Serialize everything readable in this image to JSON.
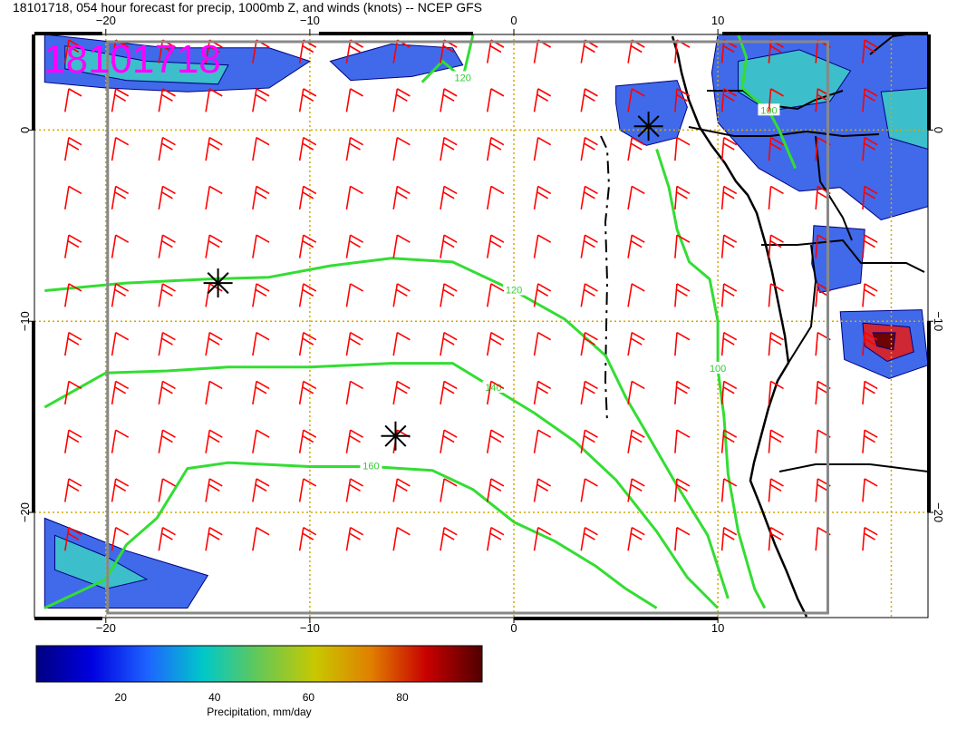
{
  "title": "18101718, 054 hour forecast for precip, 1000mb Z, and winds (knots) -- NCEP GFS",
  "date_label": "18101718",
  "map": {
    "lon_range": [
      -23.5,
      20.3
    ],
    "lat_range": [
      -25.5,
      5
    ],
    "lon_ticks": [
      {
        "value": -20,
        "label": "−20"
      },
      {
        "value": -10,
        "label": "−10"
      },
      {
        "value": 0,
        "label": "0"
      },
      {
        "value": 10,
        "label": "10"
      }
    ],
    "lat_ticks": [
      {
        "value": 0,
        "label": "0"
      },
      {
        "value": -10,
        "label": "−10"
      },
      {
        "value": -20,
        "label": "−20"
      }
    ],
    "gridlines": "dotted gold",
    "height_contours": [
      {
        "value": 120,
        "label": "120",
        "points": [
          [
            -23,
            -8.4
          ],
          [
            -19,
            -8
          ],
          [
            -15,
            -7.8
          ],
          [
            -12,
            -7.7
          ],
          [
            -9,
            -7.1
          ],
          [
            -6,
            -6.7
          ],
          [
            -3,
            -6.9
          ],
          [
            0,
            -8.4
          ],
          [
            2.5,
            -9.9
          ],
          [
            4.5,
            -11.8
          ],
          [
            5.5,
            -14
          ],
          [
            6.7,
            -16.2
          ],
          [
            8,
            -18.6
          ],
          [
            9.5,
            -21.2
          ],
          [
            10.5,
            -24.5
          ]
        ]
      },
      {
        "value": 140,
        "label": "140",
        "points": [
          [
            -23,
            -14.5
          ],
          [
            -20,
            -12.7
          ],
          [
            -17,
            -12.6
          ],
          [
            -14,
            -12.4
          ],
          [
            -10,
            -12.4
          ],
          [
            -6,
            -12.2
          ],
          [
            -3,
            -12.2
          ],
          [
            -1,
            -13.5
          ],
          [
            1,
            -14.8
          ],
          [
            3,
            -16.3
          ],
          [
            5,
            -18.3
          ],
          [
            7,
            -21
          ],
          [
            8.5,
            -23.4
          ],
          [
            10,
            -25
          ]
        ]
      },
      {
        "value": 160,
        "label": "160",
        "points": [
          [
            -23,
            -25
          ],
          [
            -22,
            -24.5
          ],
          [
            -20,
            -23.5
          ],
          [
            -19,
            -21.7
          ],
          [
            -17.5,
            -20.3
          ],
          [
            -16,
            -17.7
          ],
          [
            -14,
            -17.4
          ],
          [
            -10,
            -17.6
          ],
          [
            -7,
            -17.6
          ],
          [
            -4,
            -17.8
          ],
          [
            -2,
            -18.8
          ],
          [
            0,
            -20.5
          ],
          [
            2,
            -21.5
          ],
          [
            4,
            -22.8
          ],
          [
            5.5,
            -24
          ],
          [
            7,
            -25
          ]
        ]
      },
      {
        "value": 100,
        "label": "100",
        "points": [
          [
            7,
            -1
          ],
          [
            7.6,
            -3
          ],
          [
            8,
            -5.2
          ],
          [
            8.6,
            -6.9
          ],
          [
            9.6,
            -7.8
          ],
          [
            10,
            -10
          ],
          [
            10,
            -12.5
          ],
          [
            10.3,
            -15
          ],
          [
            10.5,
            -18
          ],
          [
            11,
            -21
          ],
          [
            11.8,
            -24
          ],
          [
            12.3,
            -25
          ]
        ]
      },
      {
        "value": 120,
        "label": "120",
        "points": [
          [
            -4.5,
            2.5
          ],
          [
            -3.5,
            3.6
          ],
          [
            -2.5,
            2.7
          ],
          [
            -2,
            5
          ]
        ]
      },
      {
        "value": 100,
        "label": "100",
        "points": [
          [
            11,
            5
          ],
          [
            11.4,
            3.8
          ],
          [
            11.2,
            2.2
          ],
          [
            12.5,
            1
          ],
          [
            13,
            0
          ],
          [
            13.8,
            -2
          ]
        ]
      }
    ],
    "precip_blobs": [
      {
        "level": "low",
        "points": [
          [
            -23,
            5
          ],
          [
            -17,
            4.3
          ],
          [
            -12,
            4.3
          ],
          [
            -10,
            3.6
          ],
          [
            -12,
            2.2
          ],
          [
            -16,
            2
          ],
          [
            -20,
            2.2
          ],
          [
            -23,
            2.5
          ]
        ]
      },
      {
        "level": "mid",
        "points": [
          [
            -22,
            4.4
          ],
          [
            -18,
            3.6
          ],
          [
            -14,
            3.4
          ],
          [
            -14.5,
            2.4
          ],
          [
            -19,
            2.6
          ],
          [
            -22,
            3.2
          ]
        ]
      },
      {
        "level": "low",
        "points": [
          [
            -9,
            3.6
          ],
          [
            -6,
            4.5
          ],
          [
            -3,
            4.3
          ],
          [
            -2.5,
            3.4
          ],
          [
            -5,
            2.8
          ],
          [
            -8,
            2.6
          ]
        ]
      },
      {
        "level": "low",
        "points": [
          [
            5,
            2.3
          ],
          [
            8,
            2.6
          ],
          [
            8.5,
            1.2
          ],
          [
            8,
            -0.4
          ],
          [
            6.5,
            -0.8
          ],
          [
            5.2,
            0
          ],
          [
            5,
            1.4
          ]
        ]
      },
      {
        "level": "low",
        "points": [
          [
            10,
            5
          ],
          [
            20.3,
            5
          ],
          [
            20.3,
            -4
          ],
          [
            18,
            -4.7
          ],
          [
            16,
            -3
          ],
          [
            14,
            -3.2
          ],
          [
            12,
            -2
          ],
          [
            10,
            0.4
          ],
          [
            9.7,
            3
          ]
        ]
      },
      {
        "level": "mid",
        "points": [
          [
            11,
            3.6
          ],
          [
            14,
            4.2
          ],
          [
            16.5,
            3.1
          ],
          [
            15.5,
            1.5
          ],
          [
            12.5,
            1
          ],
          [
            11,
            2
          ]
        ]
      },
      {
        "level": "mid",
        "points": [
          [
            18,
            2
          ],
          [
            20.3,
            2.2
          ],
          [
            20.3,
            -1
          ],
          [
            18.4,
            -0.4
          ]
        ]
      },
      {
        "level": "low",
        "points": [
          [
            14.7,
            -5
          ],
          [
            17.2,
            -5.2
          ],
          [
            17,
            -8
          ],
          [
            15,
            -8.5
          ],
          [
            14.6,
            -7
          ]
        ]
      },
      {
        "level": "low",
        "points": [
          [
            16,
            -9.5
          ],
          [
            20,
            -9.4
          ],
          [
            20.3,
            -12.3
          ],
          [
            18.4,
            -13
          ],
          [
            16.2,
            -12
          ]
        ]
      },
      {
        "level": "high",
        "points": [
          [
            17.1,
            -10.1
          ],
          [
            19.4,
            -10.3
          ],
          [
            19.6,
            -11.6
          ],
          [
            18.3,
            -12.1
          ],
          [
            17.2,
            -11.3
          ]
        ]
      },
      {
        "level": "peak",
        "points": [
          [
            17.6,
            -10.6
          ],
          [
            18.7,
            -10.6
          ],
          [
            18.6,
            -11.5
          ],
          [
            17.8,
            -11.3
          ]
        ]
      },
      {
        "level": "low",
        "points": [
          [
            -23,
            -20.3
          ],
          [
            -19,
            -22
          ],
          [
            -15,
            -23.3
          ],
          [
            -16,
            -25
          ],
          [
            -23,
            -25
          ]
        ]
      },
      {
        "level": "mid",
        "points": [
          [
            -22.5,
            -21.2
          ],
          [
            -20,
            -22.3
          ],
          [
            -18,
            -23.5
          ],
          [
            -20,
            -24
          ],
          [
            -22.5,
            -23
          ]
        ]
      }
    ],
    "pressure_centers": [
      {
        "lon": -14.5,
        "lat": -8
      },
      {
        "lon": -5.8,
        "lat": -16
      },
      {
        "lon": 6.6,
        "lat": 0.2
      }
    ]
  },
  "colorbar": {
    "range": [
      2,
      97
    ],
    "ticks": [
      {
        "value": 20,
        "label": "20"
      },
      {
        "value": 40,
        "label": "40"
      },
      {
        "value": 60,
        "label": "60"
      },
      {
        "value": 80,
        "label": "80"
      }
    ],
    "label": "Precipitation, mm/day",
    "stops": [
      "#000080",
      "#0000e0",
      "#1e64ff",
      "#00c8c8",
      "#66c855",
      "#c8c800",
      "#e08000",
      "#c80000",
      "#500000"
    ]
  },
  "colors": {
    "wind_barbs": "#ff0000",
    "height_contours": "#33dd33",
    "gridlines": "#d4a800",
    "coastline": "#000000",
    "date_label": "#ff00ff"
  }
}
